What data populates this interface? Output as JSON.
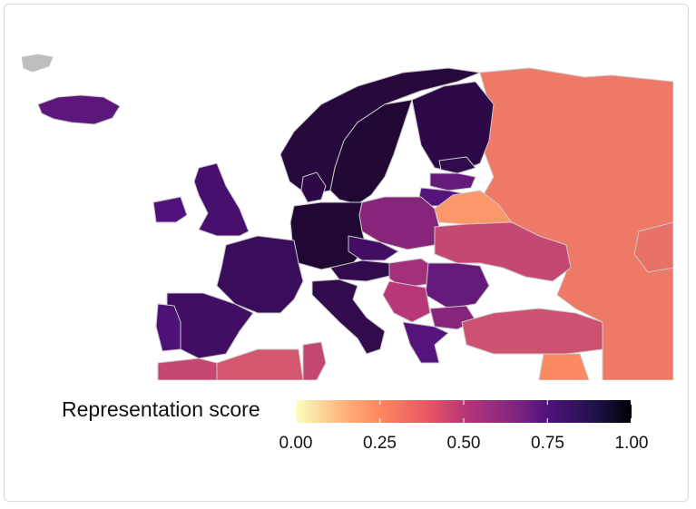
{
  "map": {
    "legend": {
      "title": "Representation score",
      "ticks": [
        "0.00",
        "0.25",
        "0.50",
        "0.75",
        "1.00"
      ],
      "range": [
        0,
        1
      ]
    },
    "colors": {
      "no_data": "#bdbdbd",
      "border": "#c9c9c9",
      "sea": "#ffffff",
      "scale": [
        "#fcfdbf",
        "#fc8961",
        "#b73779",
        "#51127c",
        "#000004"
      ]
    },
    "regions": [
      {
        "name": "Iceland",
        "score": 0.72
      },
      {
        "name": "Norway",
        "score": 0.88
      },
      {
        "name": "Sweden",
        "score": 0.9
      },
      {
        "name": "Finland",
        "score": 0.86
      },
      {
        "name": "Russia",
        "score": 0.3
      },
      {
        "name": "Estonia",
        "score": 0.85
      },
      {
        "name": "Latvia",
        "score": 0.7
      },
      {
        "name": "Lithuania",
        "score": 0.74
      },
      {
        "name": "Belarus",
        "score": 0.22
      },
      {
        "name": "Ukraine",
        "score": 0.45
      },
      {
        "name": "Poland",
        "score": 0.62
      },
      {
        "name": "Germany",
        "score": 0.9
      },
      {
        "name": "Denmark",
        "score": 0.86
      },
      {
        "name": "United Kingdom",
        "score": 0.78
      },
      {
        "name": "Ireland",
        "score": 0.75
      },
      {
        "name": "France",
        "score": 0.82
      },
      {
        "name": "Spain",
        "score": 0.8
      },
      {
        "name": "Portugal",
        "score": 0.76
      },
      {
        "name": "Italy",
        "score": 0.85
      },
      {
        "name": "Czechia",
        "score": 0.8
      },
      {
        "name": "Austria",
        "score": 0.85
      },
      {
        "name": "Hungary",
        "score": 0.55
      },
      {
        "name": "Romania",
        "score": 0.7
      },
      {
        "name": "Bulgaria",
        "score": 0.62
      },
      {
        "name": "Serbia",
        "score": 0.5
      },
      {
        "name": "Greece",
        "score": 0.74
      },
      {
        "name": "Turkey",
        "score": 0.42
      },
      {
        "name": "Morocco",
        "score": 0.45
      },
      {
        "name": "Algeria",
        "score": 0.4
      },
      {
        "name": "Tunisia",
        "score": 0.45
      },
      {
        "name": "Syria",
        "score": 0.25
      },
      {
        "name": "Kazakhstan",
        "score": 0.32
      },
      {
        "name": "Svalbard",
        "score": null
      }
    ]
  }
}
